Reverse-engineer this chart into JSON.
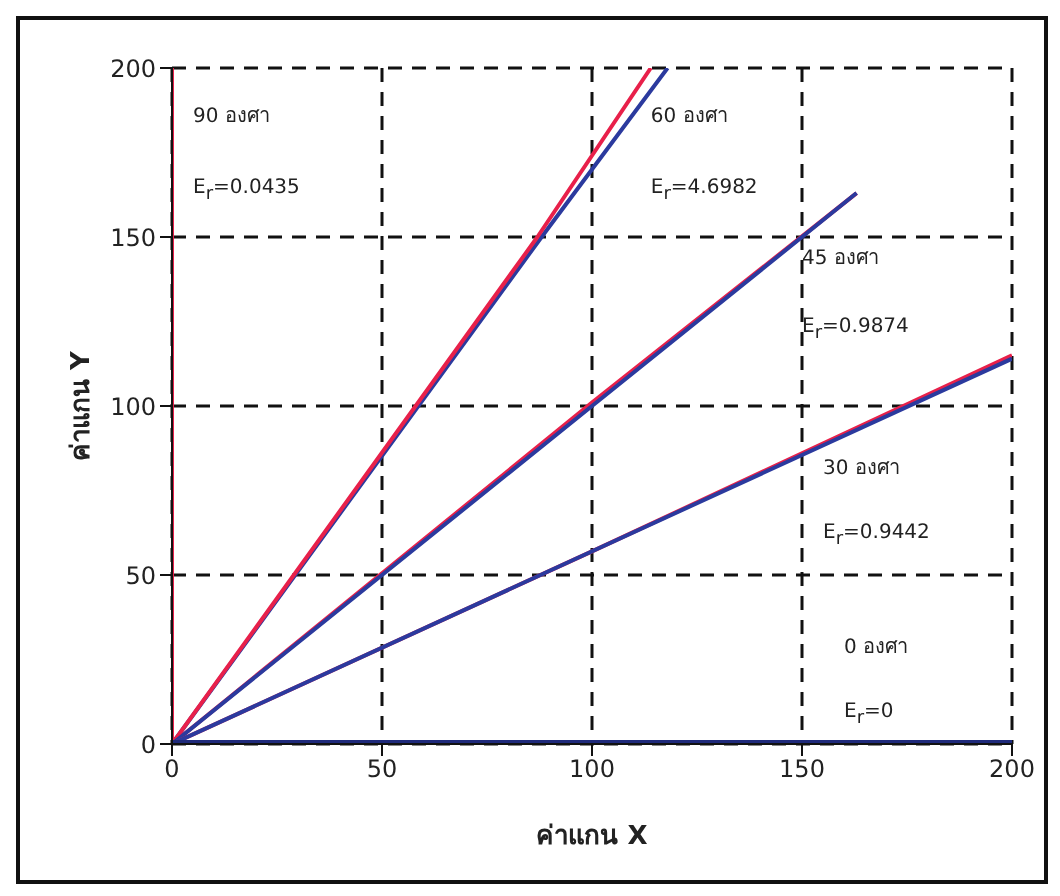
{
  "chart_data": {
    "type": "line",
    "xlabel": "ค่าแกน X",
    "ylabel": "ค่าแกน Y",
    "xlim": [
      0,
      200
    ],
    "ylim": [
      0,
      200
    ],
    "xticks": [
      0,
      50,
      100,
      150,
      200
    ],
    "yticks": [
      0,
      50,
      100,
      150,
      200
    ],
    "grid": true,
    "marker": "none",
    "series": [
      {
        "color": "#2b3a9e",
        "x": [
          0,
          88,
          118
        ],
        "values": [
          0,
          150,
          200
        ]
      },
      {
        "color": "#e8204a",
        "x": [
          0,
          87,
          114
        ],
        "values": [
          0,
          150,
          200
        ]
      },
      {
        "color": "#e8204a",
        "x": [
          0,
          0
        ],
        "values": [
          0,
          200
        ]
      },
      {
        "color": "#e8204a",
        "x": [
          0,
          100,
          163
        ],
        "values": [
          0,
          101,
          163
        ]
      },
      {
        "color": "#2b3a9e",
        "x": [
          0,
          100,
          163
        ],
        "values": [
          0,
          100,
          163
        ]
      },
      {
        "color": "#e8204a",
        "x": [
          0,
          100,
          200
        ],
        "values": [
          0,
          57,
          115
        ]
      },
      {
        "color": "#2b3a9e",
        "x": [
          0,
          200
        ],
        "values": [
          0,
          114
        ]
      },
      {
        "color": "#1f2a7a",
        "x": [
          0,
          200
        ],
        "values": [
          0,
          0
        ]
      }
    ],
    "annotations": [
      "90 องศา",
      "E$_{r}$=0.0435",
      "60 องศา",
      "E$_{r}$=4.6982",
      "45 องศา",
      "E$_{r}$=0.9874",
      "30 องศา",
      "E$_{r}$=0.9442",
      "0 องศา",
      "E$_{r}$=0"
    ]
  }
}
